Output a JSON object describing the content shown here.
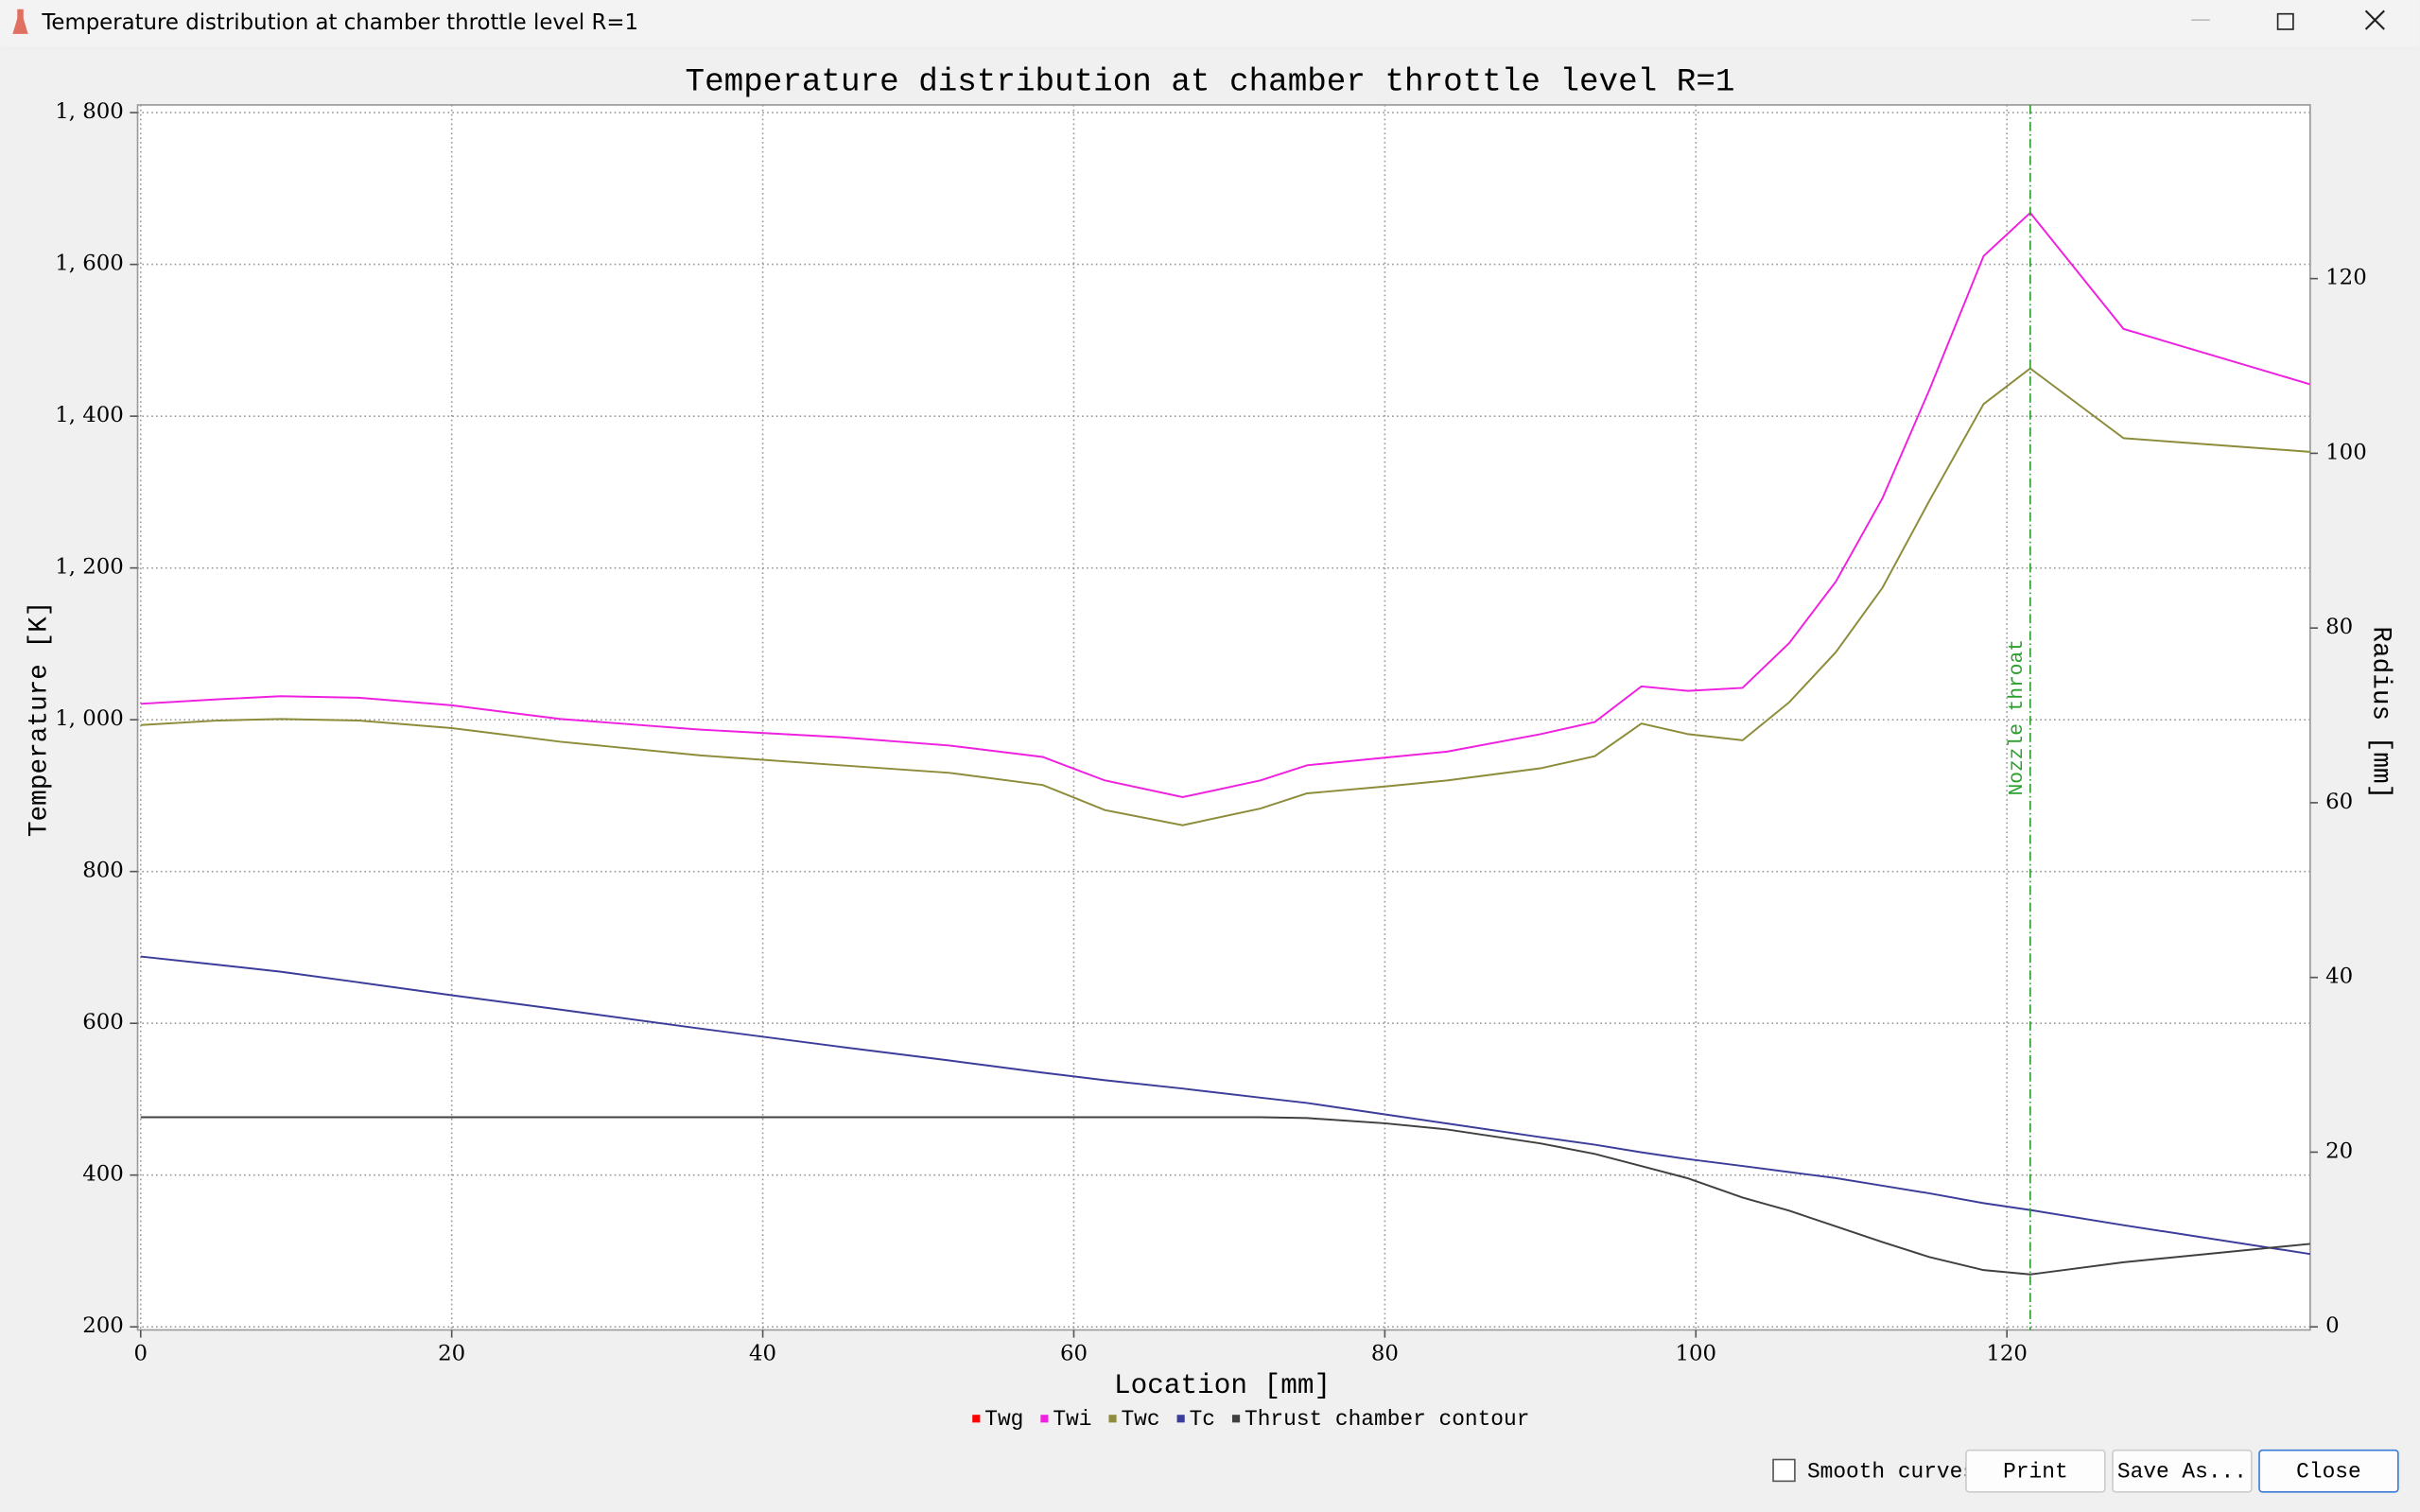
{
  "window": {
    "title": "Temperature distribution at chamber throttle level R=1",
    "checkbox": "Smooth curves",
    "buttons": [
      "Print",
      "Save As...",
      "Close"
    ]
  },
  "chart_data": {
    "type": "line",
    "title": "Temperature distribution at chamber throttle level R=1",
    "x_label": "Location [mm]",
    "y_label": "Temperature [K]",
    "y2_label": "Radius [mm]",
    "x": [
      0,
      5,
      9,
      14,
      20,
      27,
      36,
      45,
      52,
      58,
      62,
      67,
      72,
      75,
      80,
      84,
      90,
      93.5,
      96.5,
      99.5,
      103,
      106,
      109,
      112,
      115,
      118.5,
      121.5,
      127.5,
      139.5
    ],
    "xlim": [
      0,
      139.5
    ],
    "ylim": [
      200,
      1800
    ],
    "y2lim": [
      0,
      139
    ],
    "xticks": [
      0,
      20,
      40,
      60,
      80,
      100,
      120
    ],
    "yticks": [
      200,
      400,
      600,
      800,
      {
        "value": 1000,
        "label": "1, 000"
      },
      {
        "value": 1200,
        "label": "1, 200"
      },
      {
        "value": 1400,
        "label": "1, 400"
      },
      {
        "value": 1600,
        "label": "1, 600"
      },
      {
        "value": 1800,
        "label": "1, 800"
      }
    ],
    "y2ticks": [
      0,
      20,
      40,
      60,
      80,
      100,
      120
    ],
    "grid": true,
    "legend": "bottom",
    "series": [
      {
        "name": "Twg",
        "color": "#ff0000",
        "values": [
          null,
          null,
          null,
          null,
          null,
          null,
          null,
          null,
          null,
          null,
          null,
          null,
          null,
          null,
          null,
          null,
          null,
          null,
          null,
          null,
          null,
          null,
          null,
          null,
          null,
          null,
          null,
          null,
          null
        ]
      },
      {
        "name": "Twi",
        "color": "#f020e0",
        "values": [
          1021,
          1027,
          1031,
          1029,
          1019,
          1001,
          987,
          977,
          966,
          951,
          920,
          898,
          920,
          940,
          950,
          958,
          981,
          997,
          1044,
          1038,
          1042,
          1101,
          1182,
          1292,
          1434,
          1611,
          1668,
          1515,
          1442
        ]
      },
      {
        "name": "Twc",
        "color": "#8c8c3a",
        "values": [
          993,
          999,
          1001,
          999,
          989,
          971,
          953,
          940,
          930,
          914,
          881,
          861,
          883,
          903,
          912,
          920,
          936,
          952,
          995,
          981,
          973,
          1023,
          1089,
          1174,
          1288,
          1416,
          1463,
          1371,
          1353
        ]
      },
      {
        "name": "Tc",
        "color": "#3c3c9a",
        "values": [
          688,
          677,
          668,
          654,
          637,
          618,
          593,
          569,
          551,
          535,
          525,
          514,
          502,
          495,
          480,
          468,
          450,
          440,
          430,
          421,
          412,
          404,
          396,
          386,
          376,
          363,
          354,
          334,
          296
        ]
      },
      {
        "name": "Thrust chamber contour",
        "color": "#404040",
        "axis": "y2",
        "values": [
          24,
          24,
          24,
          24,
          24,
          24,
          24,
          24,
          24,
          24,
          24,
          24,
          24,
          23.9,
          23.3,
          22.6,
          21,
          19.8,
          18.4,
          17,
          14.8,
          13.3,
          11.5,
          9.7,
          8,
          6.5,
          6,
          7.4,
          9.5
        ]
      }
    ],
    "annotation": {
      "text": "Nozzle throat",
      "x": 121.5,
      "color": "#2ca02c"
    }
  }
}
